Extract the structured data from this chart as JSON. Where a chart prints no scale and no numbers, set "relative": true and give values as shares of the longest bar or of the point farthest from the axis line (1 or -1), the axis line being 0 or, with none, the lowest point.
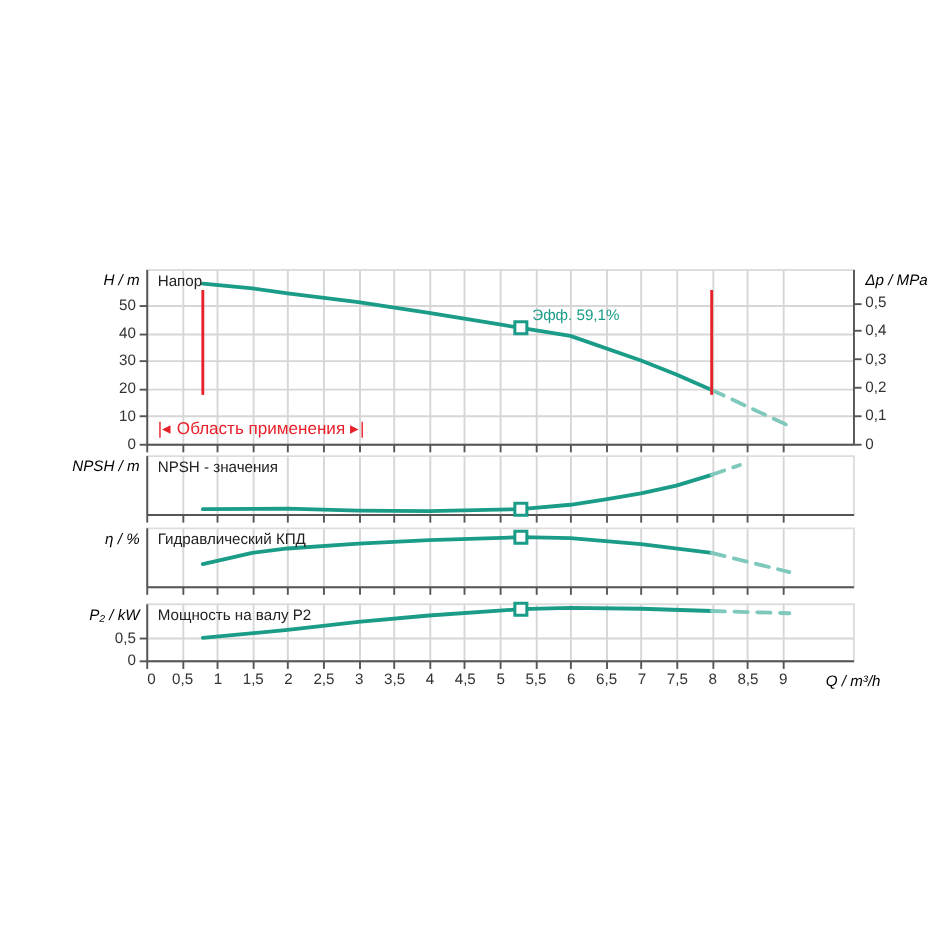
{
  "chart_data": [
    {
      "type": "line",
      "ylabel": "H / m",
      "y2label": "Δp / MPa",
      "annotations": [
        "Напор",
        {
          "text": "Эфф. 59,1%",
          "x": 5.3,
          "y": 41.8
        },
        "|◂ Область применения ▸|"
      ],
      "series": [
        {
          "color": "#1a9c88",
          "x": [
            0.8,
            1.5,
            2,
            3,
            4,
            5,
            5.3,
            6,
            7,
            7.5,
            8
          ],
          "values": [
            57.7,
            56.0,
            54.2,
            51.1,
            47.2,
            43.0,
            41.8,
            38.9,
            30.0,
            25.0,
            19.4
          ]
        },
        {
          "color": "#7fc8bc",
          "line_style": "dashed",
          "x": [
            8,
            9.1
          ],
          "values": [
            19.4,
            6.4
          ]
        },
        {
          "type": "scatter",
          "marker": "square",
          "color": "#1a9c88",
          "x": [
            5.3
          ],
          "values": [
            41.8
          ]
        }
      ],
      "xlim": [
        0,
        10
      ],
      "ylim": [
        0,
        63
      ],
      "yticks": [
        0,
        10,
        20,
        30,
        40,
        50
      ],
      "y2lim": [
        0,
        0.618
      ],
      "y2ticks": [
        0,
        {
          "value": 0.1,
          "label": "0,1"
        },
        {
          "value": 0.2,
          "label": "0,2"
        },
        {
          "value": 0.3,
          "label": "0,3"
        },
        {
          "value": 0.4,
          "label": "0,4"
        },
        {
          "value": 0.5,
          "label": "0,5"
        }
      ],
      "ref_lines": [
        {
          "axis": "x",
          "value": 0.8,
          "color": "#e8202a"
        },
        {
          "axis": "x",
          "value": 8,
          "color": "#e8202a"
        }
      ],
      "grid": true,
      "tick_labels": "y",
      "xticks": [
        0,
        0.5,
        1,
        1.5,
        2,
        2.5,
        3,
        3.5,
        4,
        4.5,
        5,
        5.5,
        6,
        6.5,
        7,
        7.5,
        8,
        8.5,
        9
      ]
    },
    {
      "type": "line",
      "ylabel": "NPSH / m",
      "relative": true,
      "annotations": [
        "NPSH - значения"
      ],
      "series": [
        {
          "color": "#1a9c88",
          "x": [
            0.8,
            2,
            3,
            4,
            5.3,
            6,
            6.5,
            7,
            7.5,
            8
          ],
          "values": [
            0.1,
            0.11,
            0.07,
            0.06,
            0.1,
            0.19,
            0.3,
            0.42,
            0.58,
            0.8
          ]
        },
        {
          "color": "#7fc8bc",
          "line_style": "dashed",
          "x": [
            8,
            8.4
          ],
          "values": [
            0.8,
            1.0
          ]
        },
        {
          "type": "scatter",
          "marker": "square",
          "color": "#1a9c88",
          "x": [
            5.3
          ],
          "values": [
            0.1
          ]
        }
      ],
      "xlim": [
        0,
        10
      ],
      "xticks": [
        0,
        0.5,
        1,
        1.5,
        2,
        2.5,
        3,
        3.5,
        4,
        4.5,
        5,
        5.5,
        6,
        6.5,
        7,
        7.5,
        8,
        8.5,
        9
      ],
      "grid": true,
      "tick_labels": false
    },
    {
      "type": "line",
      "ylabel": "η / %",
      "relative": true,
      "annotations": [
        "Гидравлический КПД"
      ],
      "series": [
        {
          "color": "#1a9c88",
          "x": [
            0.8,
            1.5,
            2,
            3,
            4,
            5.3,
            6,
            7,
            8
          ],
          "values": [
            0.45,
            0.68,
            0.77,
            0.87,
            0.94,
            1.0,
            0.98,
            0.86,
            0.68
          ]
        },
        {
          "color": "#7fc8bc",
          "line_style": "dashed",
          "x": [
            8,
            9.1
          ],
          "values": [
            0.68,
            0.29
          ]
        },
        {
          "type": "scatter",
          "marker": "square",
          "color": "#1a9c88",
          "x": [
            5.3
          ],
          "values": [
            1.0
          ]
        }
      ],
      "xlim": [
        0,
        10
      ],
      "xticks": [
        0,
        0.5,
        1,
        1.5,
        2,
        2.5,
        3,
        3.5,
        4,
        4.5,
        5,
        5.5,
        6,
        6.5,
        7,
        7.5,
        8,
        8.5,
        9
      ],
      "grid": true,
      "tick_labels": false
    },
    {
      "type": "line",
      "ylabel": "P₂ / kW",
      "xlabel": "Q / m³/h",
      "annotations": [
        "Мощность на валу P2"
      ],
      "series": [
        {
          "color": "#1a9c88",
          "x": [
            0.8,
            2,
            3,
            4,
            5.3,
            6,
            7,
            8
          ],
          "values": [
            0.5,
            0.68,
            0.86,
            1.0,
            1.14,
            1.17,
            1.15,
            1.1
          ]
        },
        {
          "color": "#7fc8bc",
          "line_style": "dashed",
          "x": [
            8,
            9.1
          ],
          "values": [
            1.1,
            1.05
          ]
        },
        {
          "type": "scatter",
          "marker": "square",
          "color": "#1a9c88",
          "x": [
            5.3
          ],
          "values": [
            1.14
          ]
        }
      ],
      "xlim": [
        0,
        10
      ],
      "xticks": [
        0,
        {
          "value": 0.5,
          "label": "0,5"
        },
        1,
        {
          "value": 1.5,
          "label": "1,5"
        },
        2,
        {
          "value": 2.5,
          "label": "2,5"
        },
        3,
        {
          "value": 3.5,
          "label": "3,5"
        },
        4,
        {
          "value": 4.5,
          "label": "4,5"
        },
        5,
        {
          "value": 5.5,
          "label": "5,5"
        },
        6,
        {
          "value": 6.5,
          "label": "6,5"
        },
        7,
        {
          "value": 7.5,
          "label": "7,5"
        },
        8,
        {
          "value": 8.5,
          "label": "8,5"
        },
        9
      ],
      "ylim": [
        0,
        1.27
      ],
      "yticks": [
        0,
        {
          "value": 0.5,
          "label": "0,5"
        }
      ],
      "grid": true
    }
  ]
}
